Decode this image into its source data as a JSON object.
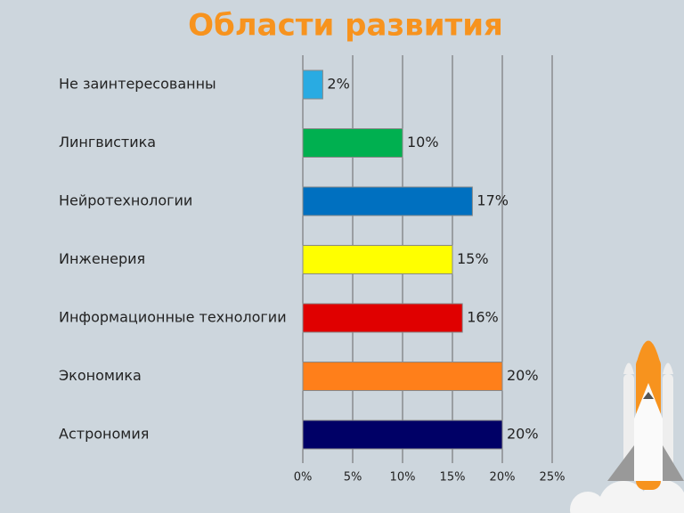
{
  "chart_data": {
    "type": "hbar",
    "title": "Области развития",
    "categories": [
      "Не заинтересованны",
      "Лингвистика",
      "Нейротехнологии",
      "Инженерия",
      "Информационные технологии",
      "Экономика",
      "Астрономия"
    ],
    "values": [
      2,
      10,
      17,
      15,
      16,
      20,
      20
    ],
    "value_labels": [
      "2%",
      "10%",
      "17%",
      "15%",
      "16%",
      "20%",
      "20%"
    ],
    "colors": [
      "#29abe2",
      "#00b050",
      "#0070c0",
      "#ffff00",
      "#e00000",
      "#ff7f1a",
      "#000066"
    ],
    "xlim": [
      0,
      25
    ],
    "xticks": [
      {
        "value": 0,
        "label": "0%"
      },
      {
        "value": 5,
        "label": "5%"
      },
      {
        "value": 10,
        "label": "10%"
      },
      {
        "value": 15,
        "label": "15%"
      },
      {
        "value": 20,
        "label": "20%"
      },
      {
        "value": 25,
        "label": "25%"
      }
    ],
    "grid": true
  }
}
